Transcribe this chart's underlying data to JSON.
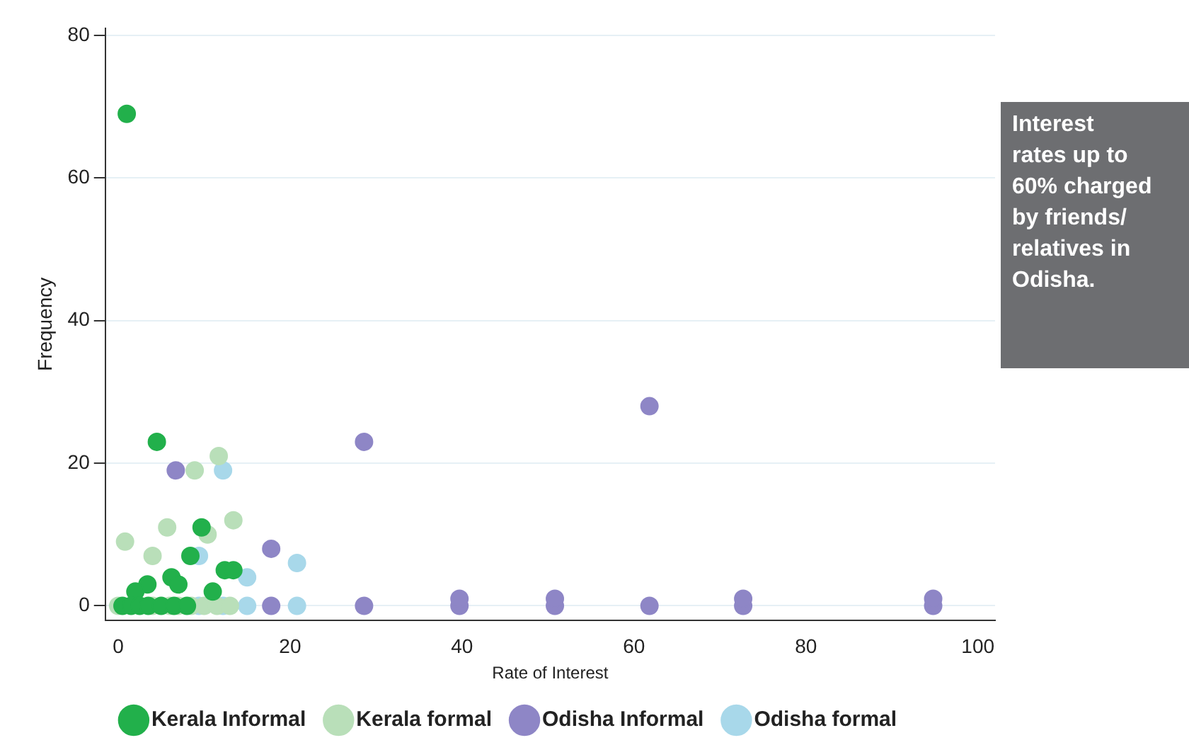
{
  "chart_data": {
    "type": "scatter",
    "xlabel": "Rate of Interest",
    "ylabel": "Frequency",
    "xlim": [
      -1.5,
      102
    ],
    "ylim": [
      -2,
      81
    ],
    "xticks": [
      0,
      20,
      40,
      60,
      80,
      100
    ],
    "yticks": [
      0,
      20,
      40,
      60,
      80
    ],
    "grid": "y",
    "legend": "bottom",
    "marker": "circle",
    "annotations": [
      "Interest rates up to 60% charged by friends/ relatives in Odisha."
    ],
    "series": [
      {
        "name": "Kerala Informal",
        "color": "#22b04b",
        "x": [
          1,
          4.5,
          9.7,
          8.4,
          12.4,
          13.4,
          6.2,
          7,
          3.4,
          2,
          11,
          0.5,
          1.5,
          2.5,
          3.5,
          5,
          6.5,
          8
        ],
        "values": [
          69,
          23,
          11,
          7,
          5,
          5,
          4,
          3,
          3,
          2,
          2,
          0,
          0,
          0,
          0,
          0,
          0,
          0
        ]
      },
      {
        "name": "Kerala formal",
        "color": "#b9dfb9",
        "x": [
          11.7,
          8.9,
          13.4,
          5.7,
          10.4,
          0.8,
          4,
          0,
          4,
          6,
          7,
          8.5,
          10,
          11.5,
          13
        ],
        "values": [
          21,
          19,
          12,
          11,
          10,
          9,
          7,
          0,
          0,
          0,
          0,
          0,
          0,
          0,
          0
        ]
      },
      {
        "name": "Odisha Informal",
        "color": "#8e86c6",
        "x": [
          6.7,
          17.8,
          17.8,
          28.6,
          61.8,
          28.6,
          39.7,
          39.7,
          50.8,
          50.8,
          61.8,
          72.7,
          72.7,
          94.8,
          94.8
        ],
        "values": [
          19,
          8,
          0,
          23,
          28,
          0,
          0,
          1,
          0,
          1,
          0,
          0,
          1,
          0,
          1
        ]
      },
      {
        "name": "Odisha formal",
        "color": "#a8d8ea",
        "x": [
          12.2,
          9.4,
          15,
          20.8,
          9.4,
          12.2,
          15,
          20.8
        ],
        "values": [
          19,
          7,
          4,
          6,
          0,
          0,
          0,
          0
        ]
      }
    ]
  }
}
